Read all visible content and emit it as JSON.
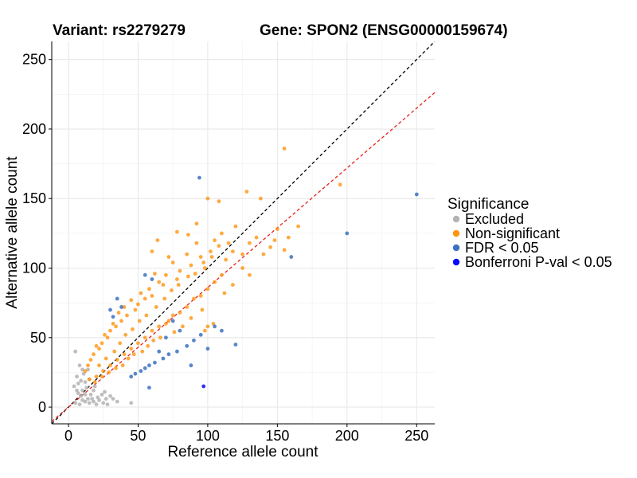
{
  "chart_data": {
    "type": "scatter",
    "title_left": "Variant: rs2279279",
    "title_right": "Gene: SPON2 (ENSG00000159674)",
    "xlabel": "Reference allele count",
    "ylabel": "Alternative allele count",
    "xlim": [
      -12,
      263
    ],
    "ylim": [
      -12,
      263
    ],
    "xticks": [
      0,
      50,
      100,
      150,
      200,
      250
    ],
    "yticks": [
      0,
      50,
      100,
      150,
      200,
      250
    ],
    "grid": true,
    "reference_lines": [
      {
        "name": "identity",
        "slope": 1.0,
        "intercept": 0,
        "color": "#000000",
        "style": "dashed"
      },
      {
        "name": "fit",
        "slope": 0.86,
        "intercept": 0,
        "color": "#e8201a",
        "style": "dashed"
      }
    ],
    "legend": {
      "title": "Significance",
      "placement": "right",
      "entries": [
        {
          "label": "Excluded",
          "color": "#b3b3b3"
        },
        {
          "label": "Non-significant",
          "color": "#ff9410"
        },
        {
          "label": "FDR < 0.05",
          "color": "#3b72c0"
        },
        {
          "label": "Bonferroni P-val < 0.05",
          "color": "#0a0aff"
        }
      ]
    },
    "series": [
      {
        "name": "Excluded",
        "color": "#b3b3b3",
        "points": [
          [
            5,
            40
          ],
          [
            8,
            30
          ],
          [
            6,
            22
          ],
          [
            4,
            15
          ],
          [
            7,
            10
          ],
          [
            9,
            8
          ],
          [
            10,
            5
          ],
          [
            12,
            4
          ],
          [
            14,
            6
          ],
          [
            5,
            3
          ],
          [
            8,
            2
          ],
          [
            10,
            12
          ],
          [
            12,
            9
          ],
          [
            15,
            3
          ],
          [
            18,
            4
          ],
          [
            20,
            2
          ],
          [
            22,
            5
          ],
          [
            25,
            3
          ],
          [
            28,
            2
          ],
          [
            30,
            8
          ],
          [
            32,
            6
          ],
          [
            35,
            4
          ],
          [
            12,
            18
          ],
          [
            15,
            20
          ],
          [
            18,
            12
          ],
          [
            7,
            17
          ],
          [
            9,
            19
          ],
          [
            11,
            24
          ],
          [
            6,
            12
          ],
          [
            13,
            14
          ],
          [
            16,
            9
          ],
          [
            21,
            7
          ],
          [
            24,
            9
          ],
          [
            27,
            6
          ],
          [
            19,
            15
          ],
          [
            14,
            27
          ],
          [
            10,
            27
          ],
          [
            17,
            6
          ],
          [
            26,
            11
          ],
          [
            45,
            3
          ]
        ]
      },
      {
        "name": "Non-significant",
        "color": "#ff9410",
        "points": [
          [
            155,
            186
          ],
          [
            195,
            160
          ],
          [
            128,
            155
          ],
          [
            100,
            150
          ],
          [
            108,
            148
          ],
          [
            138,
            150
          ],
          [
            150,
            128
          ],
          [
            165,
            130
          ],
          [
            145,
            115
          ],
          [
            155,
            113
          ],
          [
            148,
            120
          ],
          [
            158,
            122
          ],
          [
            120,
            130
          ],
          [
            125,
            110
          ],
          [
            130,
            118
          ],
          [
            135,
            122
          ],
          [
            110,
            125
          ],
          [
            115,
            118
          ],
          [
            118,
            112
          ],
          [
            105,
            120
          ],
          [
            102,
            112
          ],
          [
            95,
            108
          ],
          [
            92,
            118
          ],
          [
            98,
            100
          ],
          [
            88,
            102
          ],
          [
            85,
            110
          ],
          [
            80,
            98
          ],
          [
            78,
            92
          ],
          [
            75,
            104
          ],
          [
            70,
            95
          ],
          [
            68,
            88
          ],
          [
            65,
            90
          ],
          [
            62,
            96
          ],
          [
            60,
            80
          ],
          [
            58,
            85
          ],
          [
            55,
            78
          ],
          [
            52,
            82
          ],
          [
            50,
            74
          ],
          [
            48,
            70
          ],
          [
            45,
            77
          ],
          [
            42,
            66
          ],
          [
            40,
            72
          ],
          [
            38,
            62
          ],
          [
            36,
            68
          ],
          [
            34,
            58
          ],
          [
            32,
            60
          ],
          [
            30,
            55
          ],
          [
            28,
            50
          ],
          [
            26,
            52
          ],
          [
            24,
            46
          ],
          [
            22,
            42
          ],
          [
            20,
            44
          ],
          [
            18,
            38
          ],
          [
            16,
            34
          ],
          [
            14,
            30
          ],
          [
            12,
            26
          ],
          [
            110,
            95
          ],
          [
            105,
            90
          ],
          [
            100,
            85
          ],
          [
            95,
            80
          ],
          [
            90,
            78
          ],
          [
            85,
            72
          ],
          [
            80,
            68
          ],
          [
            75,
            66
          ],
          [
            70,
            60
          ],
          [
            65,
            58
          ],
          [
            60,
            55
          ],
          [
            55,
            50
          ],
          [
            50,
            46
          ],
          [
            45,
            42
          ],
          [
            40,
            38
          ],
          [
            35,
            34
          ],
          [
            30,
            30
          ],
          [
            25,
            26
          ],
          [
            20,
            22
          ],
          [
            125,
            100
          ],
          [
            130,
            95
          ],
          [
            140,
            110
          ],
          [
            112,
            82
          ],
          [
            118,
            88
          ],
          [
            96,
            70
          ],
          [
            88,
            64
          ],
          [
            82,
            58
          ],
          [
            76,
            54
          ],
          [
            72,
            62
          ],
          [
            66,
            50
          ],
          [
            61,
            48
          ],
          [
            57,
            44
          ],
          [
            53,
            40
          ],
          [
            47,
            38
          ],
          [
            43,
            35
          ],
          [
            39,
            30
          ],
          [
            34,
            28
          ],
          [
            29,
            25
          ],
          [
            24,
            22
          ],
          [
            19,
            18
          ],
          [
            15,
            20
          ],
          [
            22,
            30
          ],
          [
            27,
            35
          ],
          [
            33,
            40
          ],
          [
            37,
            46
          ],
          [
            41,
            52
          ],
          [
            46,
            56
          ],
          [
            51,
            62
          ],
          [
            56,
            66
          ],
          [
            63,
            72
          ],
          [
            69,
            78
          ],
          [
            74,
            84
          ],
          [
            79,
            88
          ],
          [
            86,
            94
          ],
          [
            91,
            96
          ],
          [
            97,
            104
          ],
          [
            103,
            108
          ],
          [
            108,
            116
          ],
          [
            113,
            106
          ],
          [
            86,
            124
          ],
          [
            60,
            112
          ],
          [
            78,
            126
          ],
          [
            64,
            120
          ],
          [
            92,
            132
          ],
          [
            72,
            108
          ],
          [
            100,
            58
          ],
          [
            104,
            60
          ],
          [
            98,
            55
          ]
        ]
      },
      {
        "name": "FDR < 0.05",
        "color": "#3b72c0",
        "points": [
          [
            94,
            165
          ],
          [
            250,
            153
          ],
          [
            200,
            125
          ],
          [
            160,
            108
          ],
          [
            55,
            95
          ],
          [
            60,
            92
          ],
          [
            35,
            78
          ],
          [
            38,
            72
          ],
          [
            32,
            65
          ],
          [
            30,
            70
          ],
          [
            120,
            45
          ],
          [
            105,
            58
          ],
          [
            110,
            55
          ],
          [
            95,
            52
          ],
          [
            80,
            55
          ],
          [
            75,
            62
          ],
          [
            70,
            50
          ],
          [
            65,
            40
          ],
          [
            62,
            32
          ],
          [
            58,
            30
          ],
          [
            55,
            28
          ],
          [
            52,
            26
          ],
          [
            48,
            24
          ],
          [
            100,
            42
          ],
          [
            90,
            48
          ],
          [
            85,
            44
          ],
          [
            78,
            40
          ],
          [
            72,
            38
          ],
          [
            68,
            35
          ],
          [
            88,
            30
          ],
          [
            45,
            22
          ],
          [
            58,
            14
          ]
        ]
      },
      {
        "name": "Bonferroni P-val < 0.05",
        "color": "#0a0aff",
        "points": [
          [
            97,
            15
          ]
        ]
      }
    ]
  }
}
